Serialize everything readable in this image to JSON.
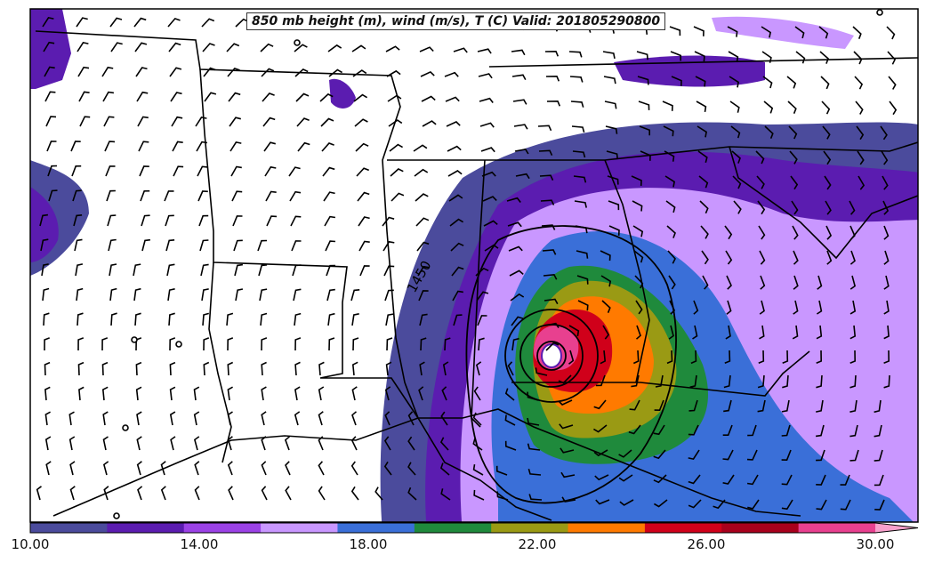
{
  "title": "850 mb height (m), wind (m/s), T (C) Valid: 201805290800",
  "contour_label": "1450",
  "colorbar": {
    "colors": [
      "#4b4b9c",
      "#5b1cb0",
      "#9b42e6",
      "#c997ff",
      "#3a6fd8",
      "#1f8a3c",
      "#9a9a14",
      "#ff7a00",
      "#d0001a",
      "#a8001c",
      "#e8408f",
      "#f8a0cc"
    ],
    "tick_labels": [
      "10.00",
      "14.00",
      "18.00",
      "22.00",
      "26.00",
      "30.00"
    ]
  },
  "legend_colors": {
    "land": "#ffffff",
    "border": "#000000"
  }
}
